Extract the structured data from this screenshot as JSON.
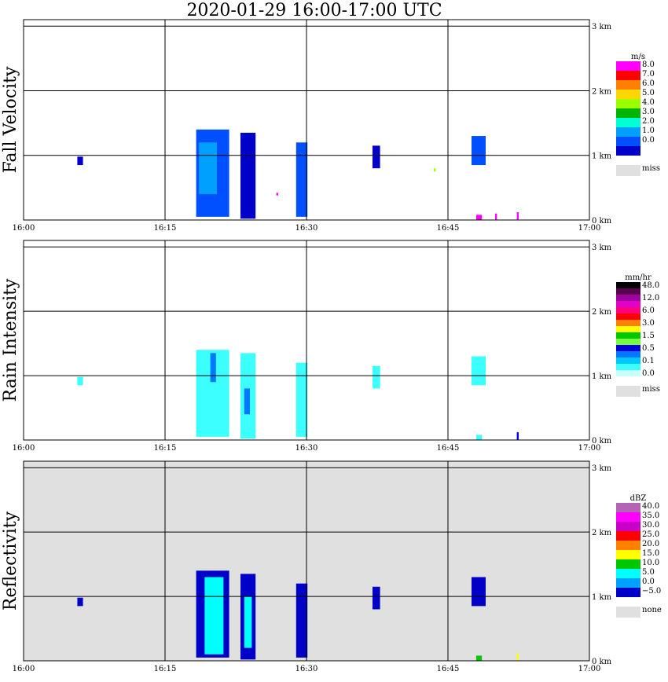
{
  "title": "2020-01-29   16:00-17:00 UTC",
  "x_ticks": [
    "16:00",
    "16:15",
    "16:30",
    "16:45",
    "17:00"
  ],
  "y_ticks": [
    "0 km",
    "1 km",
    "2 km",
    "3 km"
  ],
  "chart_data": [
    {
      "type": "heatmap",
      "ylabel": "Fall Velocity",
      "xlim": [
        "16:00",
        "17:00"
      ],
      "ylim_km": [
        0,
        3.1
      ],
      "grid": true,
      "background": "#ffffff",
      "legend": {
        "unit": "m/s",
        "placement": "right",
        "levels": [
          {
            "label": "8.0",
            "color": "#ff00ff"
          },
          {
            "label": "7.0",
            "color": "#ff0000"
          },
          {
            "label": "6.0",
            "color": "#ff7f00"
          },
          {
            "label": "5.0",
            "color": "#ffd700"
          },
          {
            "label": "4.0",
            "color": "#9bff00"
          },
          {
            "label": "3.0",
            "color": "#00b400"
          },
          {
            "label": "2.0",
            "color": "#00ffd2"
          },
          {
            "label": "1.0",
            "color": "#00a0ff"
          },
          {
            "label": "0.0",
            "color": "#0050ff"
          },
          {
            "label": "",
            "color": "#0000c8"
          }
        ],
        "missing": {
          "label": "miss",
          "color": "#e0e0e0"
        }
      },
      "echoes": [
        {
          "start": "16:05.7",
          "end": "16:06.3",
          "base_km": 0.85,
          "top_km": 0.98,
          "color": "#0000c8"
        },
        {
          "start": "16:18.3",
          "end": "16:21.8",
          "base_km": 0.05,
          "top_km": 1.4,
          "color": "#0050ff"
        },
        {
          "start": "16:18.6",
          "end": "16:20.5",
          "base_km": 0.4,
          "top_km": 1.2,
          "color": "#00a0ff"
        },
        {
          "start": "16:23.0",
          "end": "16:24.6",
          "base_km": 0.02,
          "top_km": 1.35,
          "color": "#0000c8"
        },
        {
          "start": "16:26.8",
          "end": "16:27.0",
          "base_km": 0.38,
          "top_km": 0.42,
          "color": "#ff00ff"
        },
        {
          "start": "16:28.9",
          "end": "16:30.1",
          "base_km": 0.05,
          "top_km": 1.2,
          "color": "#0050ff"
        },
        {
          "start": "16:37.0",
          "end": "16:37.8",
          "base_km": 0.8,
          "top_km": 1.15,
          "color": "#0000c8"
        },
        {
          "start": "16:43.5",
          "end": "16:43.7",
          "base_km": 0.75,
          "top_km": 0.8,
          "color": "#9bff00"
        },
        {
          "start": "16:47.5",
          "end": "16:49.0",
          "base_km": 0.85,
          "top_km": 1.3,
          "color": "#0050ff"
        },
        {
          "start": "16:48.0",
          "end": "16:48.6",
          "base_km": 0.0,
          "top_km": 0.08,
          "color": "#ff00ff"
        },
        {
          "start": "16:50.0",
          "end": "16:50.2",
          "base_km": 0.0,
          "top_km": 0.1,
          "color": "#ff00ff"
        },
        {
          "start": "16:52.3",
          "end": "16:52.5",
          "base_km": 0.0,
          "top_km": 0.12,
          "color": "#ff00ff"
        }
      ]
    },
    {
      "type": "heatmap",
      "ylabel": "Rain Intensity",
      "xlim": [
        "16:00",
        "17:00"
      ],
      "ylim_km": [
        0,
        3.1
      ],
      "grid": true,
      "background": "#ffffff",
      "legend": {
        "unit": "mm/hr",
        "placement": "right",
        "levels": [
          {
            "label": "48.0",
            "color": "#000000"
          },
          {
            "label": "",
            "color": "#5a0050"
          },
          {
            "label": "12.0",
            "color": "#a000a0"
          },
          {
            "label": "",
            "color": "#e000c8"
          },
          {
            "label": "6.0",
            "color": "#ff0080"
          },
          {
            "label": "",
            "color": "#ff0000"
          },
          {
            "label": "3.0",
            "color": "#ff7f00"
          },
          {
            "label": "",
            "color": "#ffff00"
          },
          {
            "label": "1.5",
            "color": "#00c800"
          },
          {
            "label": "",
            "color": "#78ff3c"
          },
          {
            "label": "0.5",
            "color": "#0000dc"
          },
          {
            "label": "",
            "color": "#0078ff"
          },
          {
            "label": "0.1",
            "color": "#00c8ff"
          },
          {
            "label": "",
            "color": "#3cffff"
          },
          {
            "label": "0.0",
            "color": "#c8ffff"
          }
        ],
        "missing": {
          "label": "miss",
          "color": "#e0e0e0"
        }
      },
      "echoes": [
        {
          "start": "16:05.7",
          "end": "16:06.3",
          "base_km": 0.85,
          "top_km": 0.98,
          "color": "#3cffff"
        },
        {
          "start": "16:18.3",
          "end": "16:21.8",
          "base_km": 0.05,
          "top_km": 1.4,
          "color": "#3cffff"
        },
        {
          "start": "16:19.8",
          "end": "16:20.4",
          "base_km": 0.9,
          "top_km": 1.35,
          "color": "#0078ff"
        },
        {
          "start": "16:23.0",
          "end": "16:24.6",
          "base_km": 0.02,
          "top_km": 1.35,
          "color": "#3cffff"
        },
        {
          "start": "16:23.4",
          "end": "16:24.0",
          "base_km": 0.4,
          "top_km": 0.8,
          "color": "#0078ff"
        },
        {
          "start": "16:28.9",
          "end": "16:30.1",
          "base_km": 0.05,
          "top_km": 1.2,
          "color": "#3cffff"
        },
        {
          "start": "16:37.0",
          "end": "16:37.8",
          "base_km": 0.8,
          "top_km": 1.15,
          "color": "#3cffff"
        },
        {
          "start": "16:47.5",
          "end": "16:49.0",
          "base_km": 0.85,
          "top_km": 1.3,
          "color": "#3cffff"
        },
        {
          "start": "16:48.0",
          "end": "16:48.6",
          "base_km": 0.0,
          "top_km": 0.08,
          "color": "#3cffff"
        },
        {
          "start": "16:52.3",
          "end": "16:52.5",
          "base_km": 0.0,
          "top_km": 0.12,
          "color": "#0000dc"
        }
      ]
    },
    {
      "type": "heatmap",
      "ylabel": "Reflectivity",
      "xlim": [
        "16:00",
        "17:00"
      ],
      "ylim_km": [
        0,
        3.1
      ],
      "grid": true,
      "background": "#e0e0e0",
      "legend": {
        "unit": "dBZ",
        "placement": "right",
        "levels": [
          {
            "label": "40.0",
            "color": "#b464b4"
          },
          {
            "label": "35.0",
            "color": "#ff00ff"
          },
          {
            "label": "30.0",
            "color": "#c800c8"
          },
          {
            "label": "25.0",
            "color": "#ff0000"
          },
          {
            "label": "20.0",
            "color": "#ff7f00"
          },
          {
            "label": "15.0",
            "color": "#ffff00"
          },
          {
            "label": "10.0",
            "color": "#00c800"
          },
          {
            "label": "5.0",
            "color": "#00ffff"
          },
          {
            "label": "0.0",
            "color": "#00a0ff"
          },
          {
            "label": "−5.0",
            "color": "#0000c8"
          }
        ],
        "missing": {
          "label": "none",
          "color": "#e0e0e0"
        }
      },
      "echoes": [
        {
          "start": "16:05.7",
          "end": "16:06.3",
          "base_km": 0.85,
          "top_km": 0.98,
          "color": "#0000c8"
        },
        {
          "start": "16:18.3",
          "end": "16:21.8",
          "base_km": 0.05,
          "top_km": 1.4,
          "color": "#0000c8"
        },
        {
          "start": "16:19.2",
          "end": "16:21.2",
          "base_km": 0.1,
          "top_km": 1.3,
          "color": "#00ffff"
        },
        {
          "start": "16:23.0",
          "end": "16:24.6",
          "base_km": 0.02,
          "top_km": 1.35,
          "color": "#0000c8"
        },
        {
          "start": "16:23.4",
          "end": "16:24.2",
          "base_km": 0.2,
          "top_km": 1.0,
          "color": "#00ffff"
        },
        {
          "start": "16:28.9",
          "end": "16:30.1",
          "base_km": 0.05,
          "top_km": 1.2,
          "color": "#0000c8"
        },
        {
          "start": "16:37.0",
          "end": "16:37.8",
          "base_km": 0.8,
          "top_km": 1.15,
          "color": "#0000c8"
        },
        {
          "start": "16:47.5",
          "end": "16:49.0",
          "base_km": 0.85,
          "top_km": 1.3,
          "color": "#0000c8"
        },
        {
          "start": "16:48.0",
          "end": "16:48.6",
          "base_km": 0.0,
          "top_km": 0.08,
          "color": "#00c800"
        },
        {
          "start": "16:52.3",
          "end": "16:52.5",
          "base_km": 0.0,
          "top_km": 0.12,
          "color": "#ffff00"
        }
      ]
    }
  ]
}
